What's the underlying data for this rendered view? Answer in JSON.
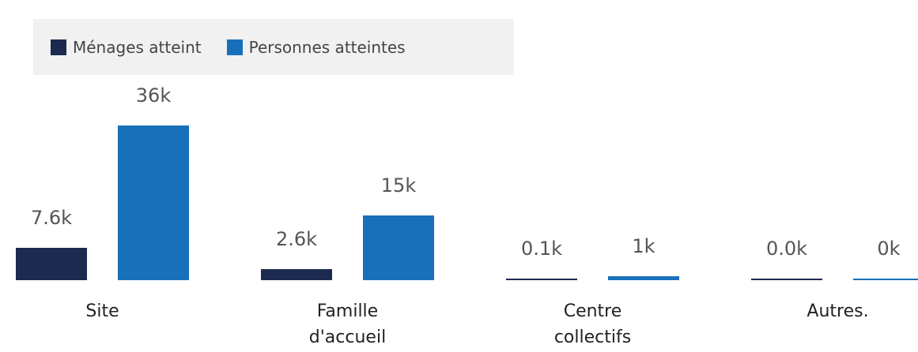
{
  "chart_data": {
    "type": "bar",
    "categories": [
      "Site",
      "Famille d'accueil",
      "Centre collectifs",
      "Autres."
    ],
    "series": [
      {
        "name": "Ménages atteint",
        "color": "#1b2a4e",
        "values": [
          7.6,
          2.6,
          0.1,
          0.0
        ],
        "value_labels": [
          "7.6k",
          "2.6k",
          "0.1k",
          "0.0k"
        ]
      },
      {
        "name": "Personnes atteintes",
        "color": "#1870bb",
        "values": [
          36,
          15,
          1,
          0
        ],
        "value_labels": [
          "36k",
          "15k",
          "1k",
          "0k"
        ]
      }
    ],
    "legend": "top-left"
  }
}
